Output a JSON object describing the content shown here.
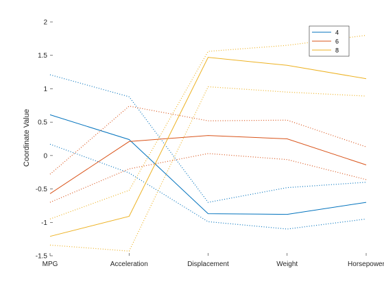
{
  "chart_data": {
    "type": "line",
    "title": "",
    "xlabel": "",
    "ylabel": "Coordinate Value",
    "categories": [
      "MPG",
      "Acceleration",
      "Displacement",
      "Weight",
      "Horsepower"
    ],
    "ylim": [
      -1.5,
      2
    ],
    "yticks": [
      "-1.5",
      "-1",
      "-0.5",
      "0",
      "0.5",
      "1",
      "1.5",
      "2"
    ],
    "grid": false,
    "legend_position": "top-right",
    "series": [
      {
        "name": "4",
        "color": "#0072BD",
        "median": [
          0.61,
          0.24,
          -0.87,
          -0.88,
          -0.7
        ],
        "upper": [
          1.21,
          0.88,
          -0.7,
          -0.48,
          -0.4
        ],
        "lower": [
          0.17,
          -0.26,
          -0.99,
          -1.1,
          -0.95
        ]
      },
      {
        "name": "6",
        "color": "#D95319",
        "median": [
          -0.57,
          0.21,
          0.3,
          0.25,
          -0.14
        ],
        "upper": [
          -0.28,
          0.74,
          0.52,
          0.53,
          0.13
        ],
        "lower": [
          -0.7,
          -0.2,
          0.03,
          -0.06,
          -0.36
        ]
      },
      {
        "name": "8",
        "color": "#EDB120",
        "median": [
          -1.21,
          -0.91,
          1.47,
          1.35,
          1.15
        ],
        "upper": [
          -0.95,
          -0.52,
          1.56,
          1.65,
          1.8
        ],
        "lower": [
          -1.34,
          -1.43,
          1.03,
          0.95,
          0.89
        ]
      }
    ]
  }
}
